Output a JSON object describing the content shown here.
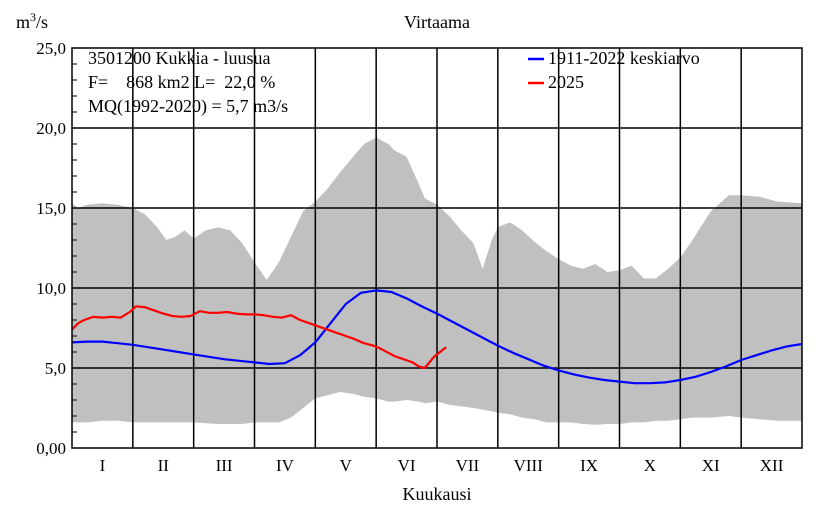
{
  "chart_data": {
    "type": "line",
    "title": "Virtaama",
    "ylabel_prefix": "m",
    "ylabel_sup": "3",
    "ylabel_suffix": "/s",
    "xlabel": "Kuukausi",
    "ylim": [
      0,
      25
    ],
    "xlim": [
      0,
      12
    ],
    "y_ticks": [
      "0,00",
      "5,0",
      "10,0",
      "15,0",
      "20,0",
      "25,0"
    ],
    "y_tick_values": [
      0,
      5,
      10,
      15,
      20,
      25
    ],
    "months": [
      "I",
      "II",
      "III",
      "IV",
      "V",
      "VI",
      "VII",
      "VIII",
      "IX",
      "X",
      "XI",
      "XII"
    ],
    "grid": true,
    "info_lines": [
      "3501200 Kukkia - luusua",
      "F=    868 km2 L=  22,0 %",
      "MQ(1992-2020) = 5,7 m3/s"
    ],
    "legend_position": "top-right",
    "legend": [
      {
        "name": "1911-2022 keskiarvo",
        "color": "#0000ff"
      },
      {
        "name": "2025",
        "color": "#ff0000"
      }
    ],
    "range_band": {
      "color": "#c0c0c0",
      "x": [
        0,
        0.1,
        0.25,
        0.5,
        0.75,
        1.0,
        1.2,
        1.4,
        1.55,
        1.7,
        1.85,
        2.0,
        2.2,
        2.4,
        2.6,
        2.8,
        3.0,
        3.2,
        3.4,
        3.6,
        3.8,
        4.0,
        4.2,
        4.4,
        4.6,
        4.8,
        5.0,
        5.2,
        5.3,
        5.5,
        5.7,
        5.8,
        6.0,
        6.2,
        6.4,
        6.6,
        6.75,
        6.9,
        7.0,
        7.2,
        7.4,
        7.6,
        7.8,
        8.0,
        8.2,
        8.4,
        8.6,
        8.8,
        9.0,
        9.2,
        9.4,
        9.6,
        9.8,
        10.0,
        10.2,
        10.5,
        10.8,
        11.0,
        11.3,
        11.6,
        12.0
      ],
      "upper": [
        15.3,
        15.0,
        15.2,
        15.3,
        15.2,
        15.0,
        14.6,
        13.8,
        13.0,
        13.2,
        13.6,
        13.1,
        13.6,
        13.8,
        13.6,
        12.8,
        11.6,
        10.5,
        11.6,
        13.2,
        14.8,
        15.4,
        16.2,
        17.2,
        18.1,
        19.0,
        19.4,
        19.0,
        18.6,
        18.2,
        16.5,
        15.6,
        15.2,
        14.5,
        13.6,
        12.8,
        11.2,
        13.0,
        13.8,
        14.1,
        13.6,
        12.9,
        12.3,
        11.8,
        11.4,
        11.2,
        11.5,
        11.0,
        11.1,
        11.4,
        10.6,
        10.6,
        11.2,
        11.9,
        13.0,
        14.8,
        15.8,
        15.8,
        15.7,
        15.4,
        15.3
      ],
      "lower": [
        1.6,
        1.6,
        1.6,
        1.7,
        1.7,
        1.6,
        1.6,
        1.6,
        1.6,
        1.6,
        1.6,
        1.6,
        1.55,
        1.5,
        1.5,
        1.5,
        1.6,
        1.6,
        1.6,
        1.9,
        2.5,
        3.1,
        3.3,
        3.5,
        3.4,
        3.2,
        3.1,
        2.9,
        2.9,
        3.0,
        2.9,
        2.8,
        2.9,
        2.7,
        2.6,
        2.5,
        2.4,
        2.3,
        2.2,
        2.1,
        1.9,
        1.8,
        1.6,
        1.6,
        1.6,
        1.5,
        1.45,
        1.5,
        1.5,
        1.6,
        1.6,
        1.7,
        1.7,
        1.8,
        1.9,
        1.9,
        2.0,
        1.9,
        1.8,
        1.7,
        1.7
      ]
    },
    "series": [
      {
        "name": "1911-2022 keskiarvo",
        "color": "#0000ff",
        "x": [
          0,
          0.25,
          0.5,
          0.75,
          1.0,
          1.25,
          1.5,
          1.75,
          2.0,
          2.25,
          2.5,
          2.75,
          3.0,
          3.25,
          3.5,
          3.75,
          4.0,
          4.25,
          4.5,
          4.75,
          5.0,
          5.25,
          5.5,
          5.75,
          6.0,
          6.25,
          6.5,
          6.75,
          7.0,
          7.25,
          7.5,
          7.75,
          8.0,
          8.25,
          8.5,
          8.75,
          9.0,
          9.25,
          9.5,
          9.75,
          10.0,
          10.25,
          10.5,
          10.75,
          11.0,
          11.25,
          11.5,
          11.75,
          12.0
        ],
        "values": [
          6.6,
          6.65,
          6.65,
          6.55,
          6.45,
          6.3,
          6.15,
          6.0,
          5.85,
          5.7,
          5.55,
          5.45,
          5.35,
          5.25,
          5.3,
          5.8,
          6.6,
          7.8,
          9.0,
          9.7,
          9.85,
          9.75,
          9.35,
          8.85,
          8.4,
          7.9,
          7.4,
          6.9,
          6.4,
          5.95,
          5.55,
          5.15,
          4.85,
          4.6,
          4.4,
          4.25,
          4.15,
          4.05,
          4.05,
          4.1,
          4.25,
          4.45,
          4.75,
          5.1,
          5.5,
          5.8,
          6.1,
          6.35,
          6.5
        ]
      },
      {
        "name": "2025",
        "color": "#ff0000",
        "x": [
          0,
          0.1,
          0.2,
          0.35,
          0.5,
          0.65,
          0.8,
          0.95,
          1.05,
          1.2,
          1.35,
          1.5,
          1.65,
          1.8,
          1.95,
          2.1,
          2.25,
          2.4,
          2.55,
          2.7,
          2.85,
          3.0,
          3.15,
          3.3,
          3.45,
          3.6,
          3.75,
          3.9,
          4.05,
          4.2,
          4.35,
          4.5,
          4.65,
          4.8,
          4.95,
          5.05,
          5.15,
          5.3,
          5.45,
          5.6,
          5.7,
          5.8,
          5.95,
          6.05,
          6.15
        ],
        "values": [
          7.4,
          7.8,
          8.0,
          8.2,
          8.15,
          8.2,
          8.15,
          8.5,
          8.85,
          8.8,
          8.6,
          8.4,
          8.25,
          8.2,
          8.25,
          8.55,
          8.45,
          8.45,
          8.5,
          8.4,
          8.35,
          8.35,
          8.3,
          8.2,
          8.15,
          8.3,
          8.0,
          7.8,
          7.6,
          7.4,
          7.2,
          7.0,
          6.8,
          6.55,
          6.4,
          6.25,
          6.05,
          5.75,
          5.55,
          5.35,
          5.1,
          5.0,
          5.7,
          6.0,
          6.3
        ]
      }
    ]
  }
}
